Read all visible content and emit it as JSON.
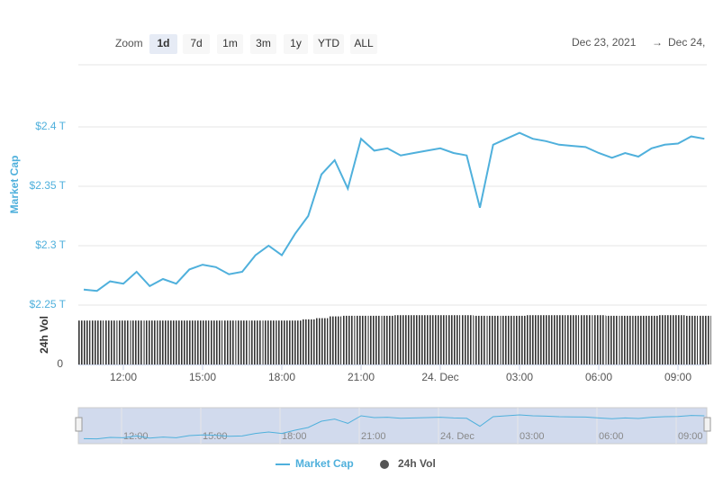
{
  "controls": {
    "zoom_label": "Zoom",
    "range_buttons": [
      "1d",
      "7d",
      "1m",
      "3m",
      "1y",
      "YTD",
      "ALL"
    ],
    "date_from": "Dec 23, 2021",
    "range_arrow": "→",
    "date_to": "Dec 24,"
  },
  "chart_data": {
    "type": "line",
    "y_label": "Market Cap",
    "y2_label": "24h Vol",
    "categories": [
      null,
      null,
      null,
      "12:00",
      null,
      null,
      null,
      null,
      null,
      "15:00",
      null,
      null,
      null,
      null,
      null,
      "18:00",
      null,
      null,
      null,
      null,
      null,
      "21:00",
      null,
      null,
      null,
      null,
      null,
      "24. Dec",
      null,
      null,
      null,
      null,
      null,
      "03:00",
      null,
      null,
      null,
      null,
      null,
      "06:00",
      null,
      null,
      null,
      null,
      null,
      "09:00",
      null,
      null
    ],
    "series": [
      {
        "name": "Market Cap",
        "color": "#4fb0dc",
        "values": [
          2.263,
          2.262,
          2.27,
          2.268,
          2.278,
          2.266,
          2.272,
          2.268,
          2.28,
          2.284,
          2.282,
          2.276,
          2.278,
          2.292,
          2.3,
          2.292,
          2.31,
          2.325,
          2.36,
          2.372,
          2.348,
          2.39,
          2.38,
          2.382,
          2.376,
          2.378,
          2.38,
          2.382,
          2.378,
          2.376,
          2.332,
          2.385,
          2.39,
          2.395,
          2.39,
          2.388,
          2.385,
          2.384,
          2.383,
          2.378,
          2.374,
          2.378,
          2.375,
          2.382,
          2.385,
          2.386,
          2.392,
          2.39
        ]
      },
      {
        "name": "24h Vol",
        "color": "#555555",
        "axis": "y2",
        "type": "column",
        "values": [
          74,
          74,
          74,
          74,
          74,
          74,
          74,
          74,
          74,
          74,
          74,
          74,
          74,
          74,
          74,
          74,
          74,
          76,
          78,
          81,
          82,
          82,
          82,
          82,
          83,
          83,
          83,
          83,
          83,
          83,
          82,
          82,
          82,
          82,
          83,
          83,
          83,
          83,
          83,
          83,
          82,
          82,
          82,
          82,
          83,
          83,
          82,
          82
        ]
      }
    ],
    "ylim": [
      2.25,
      2.45
    ],
    "yticks": [
      {
        "value": 2.25,
        "label": "$2.25 T"
      },
      {
        "value": 2.3,
        "label": "$2.3 T"
      },
      {
        "value": 2.35,
        "label": "$2.35 T"
      },
      {
        "value": 2.4,
        "label": "$2.4 T"
      }
    ],
    "y2lim": [
      0,
      100
    ],
    "y2ticks": [
      0
    ],
    "grid": true
  }
}
